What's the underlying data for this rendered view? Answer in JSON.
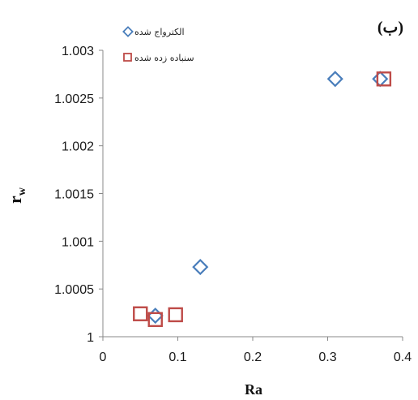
{
  "chart_data": {
    "type": "scatter",
    "panel_label": "(ب)",
    "xlabel": "Ra",
    "ylabel_main": "r",
    "ylabel_sub": "w",
    "xlim": [
      0,
      0.4
    ],
    "ylim": [
      1,
      1.003
    ],
    "x_ticks": [
      "0",
      "0.1",
      "0.2",
      "0.3",
      "0.4"
    ],
    "y_ticks": [
      "1",
      "1.0005",
      "1.001",
      "1.0015",
      "1.002",
      "1.0025",
      "1.003"
    ],
    "grid": false,
    "legend_position": "top-left",
    "series": [
      {
        "name": "الکترواج شده",
        "marker": "diamond",
        "color": "#4a7ebb",
        "points": [
          {
            "x": 0.07,
            "y": 1.00022
          },
          {
            "x": 0.13,
            "y": 1.00073
          },
          {
            "x": 0.31,
            "y": 1.0027
          },
          {
            "x": 0.37,
            "y": 1.0027
          }
        ]
      },
      {
        "name": "سنباده زده شده",
        "marker": "square",
        "color": "#be4b48",
        "points": [
          {
            "x": 0.05,
            "y": 1.00024
          },
          {
            "x": 0.07,
            "y": 1.00018
          },
          {
            "x": 0.097,
            "y": 1.00023
          },
          {
            "x": 0.375,
            "y": 1.0027
          }
        ]
      }
    ]
  }
}
